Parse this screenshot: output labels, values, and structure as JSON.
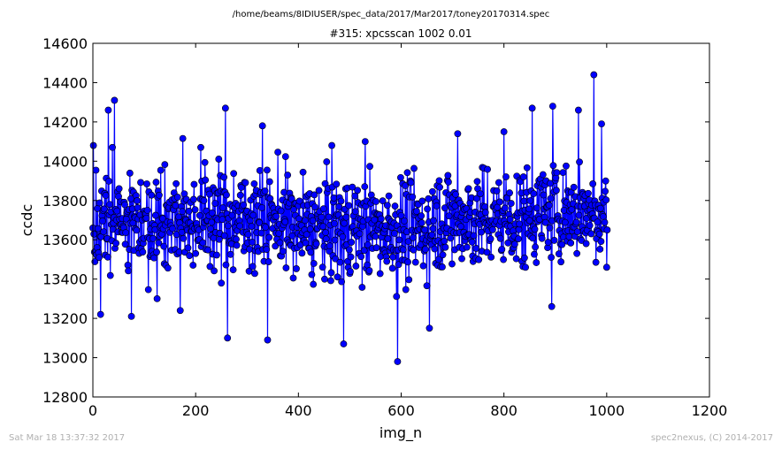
{
  "suptitle": "/home/beams/8IDIUSER/spec_data/2017/Mar2017/toney20170314.spec",
  "footer_left": "Sat Mar 18 13:37:32 2017",
  "footer_right": "spec2nexus, (C) 2014-2017",
  "chart_data": {
    "type": "line",
    "title": "#315: xpcsscan 1002 0.01",
    "xlabel": "img_n",
    "ylabel": "ccdc",
    "xlim": [
      0,
      1200
    ],
    "ylim": [
      12800,
      14600
    ],
    "xticks": [
      0,
      200,
      400,
      600,
      800,
      1000,
      1200
    ],
    "yticks": [
      12800,
      13000,
      13200,
      13400,
      13600,
      13800,
      14000,
      14200,
      14400,
      14600
    ],
    "grid": false,
    "marker": "circle",
    "color": "#0000ff",
    "n_points": 1002,
    "x_start": 0,
    "x_step": 1,
    "y_mean": 13705,
    "y_std": 150,
    "notable_points": [
      {
        "x": 1,
        "y": 14080
      },
      {
        "x": 15,
        "y": 13220
      },
      {
        "x": 30,
        "y": 14260
      },
      {
        "x": 38,
        "y": 14070
      },
      {
        "x": 42,
        "y": 14310
      },
      {
        "x": 75,
        "y": 13210
      },
      {
        "x": 125,
        "y": 13300
      },
      {
        "x": 170,
        "y": 13240
      },
      {
        "x": 210,
        "y": 14070
      },
      {
        "x": 258,
        "y": 14270
      },
      {
        "x": 262,
        "y": 13100
      },
      {
        "x": 330,
        "y": 14180
      },
      {
        "x": 340,
        "y": 13090
      },
      {
        "x": 465,
        "y": 14080
      },
      {
        "x": 488,
        "y": 13070
      },
      {
        "x": 530,
        "y": 14100
      },
      {
        "x": 593,
        "y": 12980
      },
      {
        "x": 655,
        "y": 13150
      },
      {
        "x": 710,
        "y": 14140
      },
      {
        "x": 800,
        "y": 14150
      },
      {
        "x": 855,
        "y": 14270
      },
      {
        "x": 893,
        "y": 13260
      },
      {
        "x": 895,
        "y": 14280
      },
      {
        "x": 945,
        "y": 14260
      },
      {
        "x": 975,
        "y": 14440
      },
      {
        "x": 990,
        "y": 14190
      },
      {
        "x": 1000,
        "y": 13460
      }
    ]
  }
}
